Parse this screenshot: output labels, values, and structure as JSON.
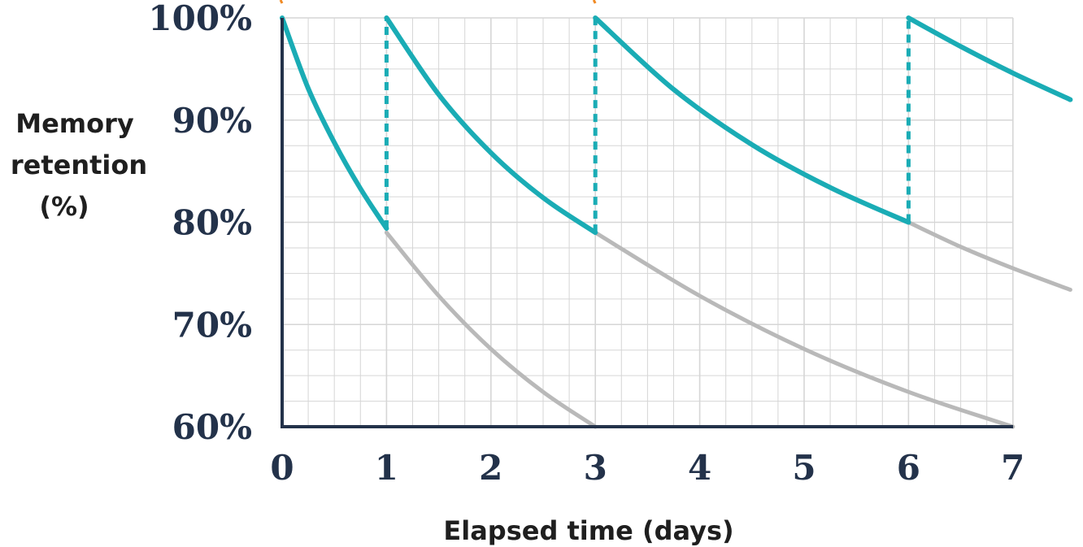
{
  "chart_data": {
    "type": "line",
    "title": "",
    "xlabel": "Elapsed time (days)",
    "ylabel_lines": [
      "Memory",
      "retention",
      "(%)"
    ],
    "x_ticks": [
      {
        "value": 0,
        "label": "0"
      },
      {
        "value": 1,
        "label": "1"
      },
      {
        "value": 2,
        "label": "2"
      },
      {
        "value": 3,
        "label": "3"
      },
      {
        "value": 4,
        "label": "4"
      },
      {
        "value": 5,
        "label": "5"
      },
      {
        "value": 6,
        "label": "6"
      },
      {
        "value": 7,
        "label": "7"
      }
    ],
    "y_ticks": [
      {
        "value": 60,
        "label": "60%"
      },
      {
        "value": 70,
        "label": "70%"
      },
      {
        "value": 80,
        "label": "80%"
      },
      {
        "value": 90,
        "label": "90%"
      },
      {
        "value": 100,
        "label": "100%"
      }
    ],
    "ylim": [
      60,
      100
    ],
    "xlim": [
      0,
      7
    ],
    "grid": true,
    "colors": {
      "review_curve": "#1aacb5",
      "forgetting_curve": "#b9b9b9",
      "axis": "#23324a",
      "grid": "#d6d6d6",
      "marker": "#f08a24"
    },
    "review_days": [
      1,
      3,
      6
    ],
    "series": [
      {
        "role": "review",
        "segments": [
          {
            "x": [
              0,
              0.25,
              0.5,
              0.75,
              1
            ],
            "y": [
              100,
              93.1,
              87.8,
              83.3,
              79.4
            ]
          },
          {
            "x": [
              1,
              1.5,
              2,
              2.5,
              3
            ],
            "y": [
              100,
              92.5,
              86.8,
              82.4,
              79.0
            ]
          },
          {
            "x": [
              3,
              3.75,
              4.5,
              5.25,
              6
            ],
            "y": [
              100,
              93.0,
              87.6,
              83.4,
              80.0
            ]
          },
          {
            "x": [
              6,
              6.5,
              7,
              7.55
            ],
            "y": [
              100,
              97.2,
              94.6,
              92.0
            ]
          }
        ]
      },
      {
        "role": "forgetting",
        "segments": [
          {
            "x": [
              1,
              1.5,
              2,
              2.5,
              3
            ],
            "y": [
              79.0,
              72.8,
              67.6,
              63.4,
              60.0
            ]
          },
          {
            "x": [
              3,
              4,
              5,
              6,
              7
            ],
            "y": [
              79.0,
              72.8,
              67.6,
              63.4,
              60.0
            ]
          },
          {
            "x": [
              6,
              6.5,
              7,
              7.55
            ],
            "y": [
              80.0,
              77.6,
              75.5,
              73.4
            ]
          }
        ]
      }
    ]
  }
}
